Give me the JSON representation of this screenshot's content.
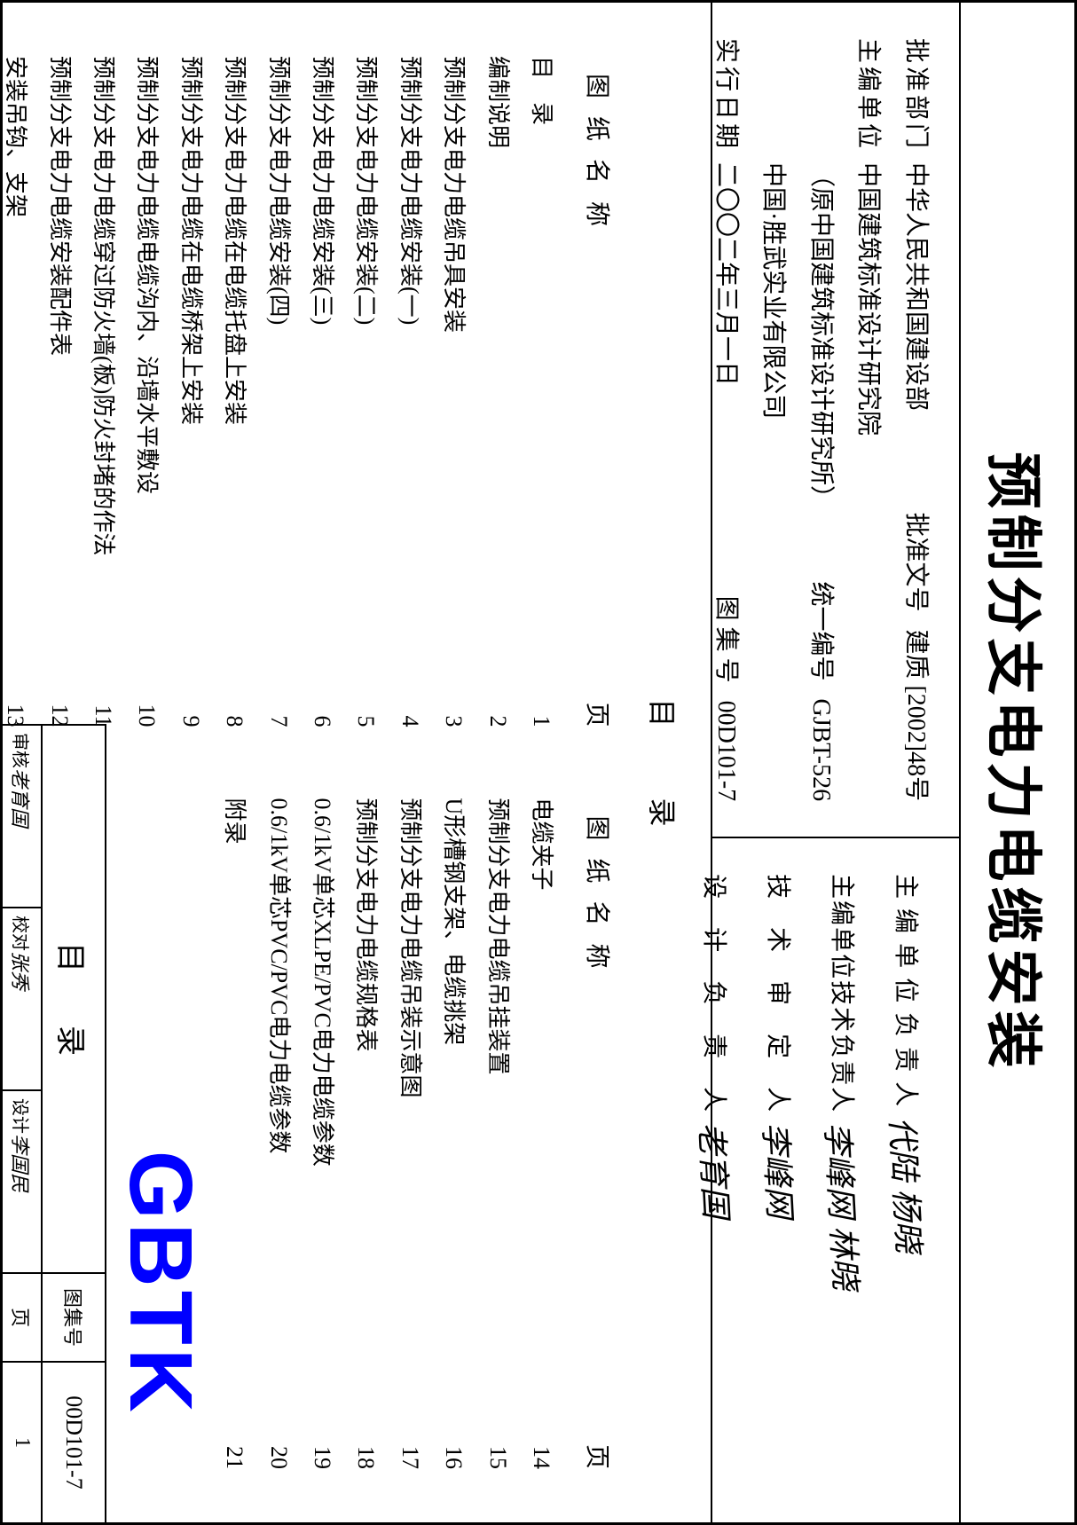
{
  "main_title": "预制分支电力电缆安装",
  "info_left": {
    "approval_dept_label": "批准部门",
    "approval_dept": "中华人民共和国建设部",
    "approval_no_label": "批准文号",
    "approval_no": "建质 [2002]48号",
    "editor_unit_label": "主编单位",
    "editor_unit_line1": "中国建筑标准设计研究院",
    "editor_unit_line2": "（原中国建筑标准设计研究所）",
    "editor_unit_line3": "中国·胜武实业有限公司",
    "unified_no_label": "统一编号",
    "unified_no": "GJBT-526",
    "exec_date_label": "实行日期",
    "exec_date": "二〇〇二年三月一日",
    "atlas_no_label": "图 集 号",
    "atlas_no": "00D101-7"
  },
  "info_right": {
    "row1_label": "主 编 单 位 负 责 人",
    "row1_sig": "代陆 杨晓",
    "row2_label": "主编单位技术负责人",
    "row2_sig": "李峰网 林晓",
    "row3_label": "技　术　审　定　人",
    "row3_sig": "李峰网",
    "row4_label": "设　计　负　责　人",
    "row4_sig": "老育国"
  },
  "toc": {
    "title": "目录",
    "header_name": "图纸名称",
    "header_page": "页",
    "left": [
      {
        "name": "目　录",
        "page": "1"
      },
      {
        "name": "编制说明",
        "page": "2"
      },
      {
        "name": "预制分支电力电缆吊具安装",
        "page": "3"
      },
      {
        "name": "预制分支电力电缆安装(一)",
        "page": "4"
      },
      {
        "name": "预制分支电力电缆安装(二)",
        "page": "5"
      },
      {
        "name": "预制分支电力电缆安装(三)",
        "page": "6"
      },
      {
        "name": "预制分支电力电缆安装(四)",
        "page": "7"
      },
      {
        "name": "预制分支电力电缆在电缆托盘上安装",
        "page": "8"
      },
      {
        "name": "预制分支电力电缆在电缆桥架上安装",
        "page": "9"
      },
      {
        "name": "预制分支电力电缆电缆沟内、沿墙水平敷设",
        "page": "10"
      },
      {
        "name": "预制分支电力电缆穿过防火墙(板)防火封堵的作法",
        "page": "11"
      },
      {
        "name": "预制分支电力电缆安装配件表",
        "page": "12"
      },
      {
        "name": "安装吊钩、支架",
        "page": "13"
      }
    ],
    "right": [
      {
        "name": "电缆夹子",
        "page": "14"
      },
      {
        "name": "预制分支电力电缆吊挂装置",
        "page": "15"
      },
      {
        "name": "U形槽钢支架、电缆挑架",
        "page": "16"
      },
      {
        "name": "预制分支电力电缆吊装示意图",
        "page": "17"
      },
      {
        "name": "预制分支电力电缆规格表",
        "page": "18"
      },
      {
        "name": "0.6/1kV单芯XLPE/PVC电力电缆参数",
        "page": "19"
      },
      {
        "name": "0.6/1kV单芯PVC/PVC电力电缆参数",
        "page": "20"
      },
      {
        "name": "附录",
        "page": "21"
      }
    ]
  },
  "watermark": "GBTK",
  "footer": {
    "title": "目录",
    "atlas_label": "图集号",
    "atlas_no": "00D101-7",
    "sig1_label": "审核",
    "sig1": "老育国",
    "sig2_label": "校对",
    "sig2": "张秀",
    "sig3_label": "设计",
    "sig3": "李国民",
    "page_label": "页",
    "page_no": "1"
  }
}
